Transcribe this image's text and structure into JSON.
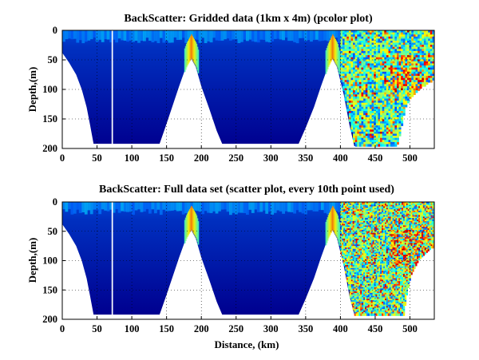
{
  "chart_data": [
    {
      "type": "heatmap",
      "title": "BackScatter: Gridded data (1km x 4m) (pcolor plot)",
      "xlabel": "",
      "ylabel": "Depth,(m)",
      "xlim": [
        0,
        535
      ],
      "ylim": [
        0,
        200
      ],
      "y_reversed": true,
      "grid": true,
      "xticks": [
        0,
        50,
        100,
        150,
        200,
        250,
        300,
        350,
        400,
        450,
        500
      ],
      "yticks": [
        0,
        50,
        100,
        150,
        200
      ],
      "colormap": "jet",
      "data_gaps_km": [
        [
          71,
          73
        ]
      ],
      "bottom_profile": [
        {
          "x": 0,
          "depth": 38
        },
        {
          "x": 10,
          "depth": 55
        },
        {
          "x": 20,
          "depth": 75
        },
        {
          "x": 28,
          "depth": 100
        },
        {
          "x": 35,
          "depth": 130
        },
        {
          "x": 40,
          "depth": 160
        },
        {
          "x": 45,
          "depth": 192
        },
        {
          "x": 140,
          "depth": 192
        },
        {
          "x": 148,
          "depth": 165
        },
        {
          "x": 158,
          "depth": 130
        },
        {
          "x": 168,
          "depth": 95
        },
        {
          "x": 178,
          "depth": 62
        },
        {
          "x": 185,
          "depth": 47
        },
        {
          "x": 192,
          "depth": 62
        },
        {
          "x": 200,
          "depth": 95
        },
        {
          "x": 212,
          "depth": 135
        },
        {
          "x": 222,
          "depth": 170
        },
        {
          "x": 230,
          "depth": 192
        },
        {
          "x": 340,
          "depth": 192
        },
        {
          "x": 350,
          "depth": 165
        },
        {
          "x": 362,
          "depth": 130
        },
        {
          "x": 372,
          "depth": 95
        },
        {
          "x": 382,
          "depth": 62
        },
        {
          "x": 388,
          "depth": 47
        },
        {
          "x": 395,
          "depth": 62
        },
        {
          "x": 405,
          "depth": 110
        },
        {
          "x": 413,
          "depth": 160
        },
        {
          "x": 420,
          "depth": 196
        },
        {
          "x": 480,
          "depth": 196
        },
        {
          "x": 486,
          "depth": 165
        },
        {
          "x": 492,
          "depth": 130
        },
        {
          "x": 500,
          "depth": 112
        },
        {
          "x": 515,
          "depth": 95
        },
        {
          "x": 535,
          "depth": 80
        }
      ]
    },
    {
      "type": "scatter",
      "title": "BackScatter: Full data set (scatter plot, every 10th point used)",
      "xlabel": "Distance, (km)",
      "ylabel": "Depth,(m)",
      "xlim": [
        0,
        535
      ],
      "ylim": [
        0,
        200
      ],
      "y_reversed": true,
      "grid": true,
      "xticks": [
        0,
        50,
        100,
        150,
        200,
        250,
        300,
        350,
        400,
        450,
        500
      ],
      "yticks": [
        0,
        50,
        100,
        150,
        200
      ],
      "colormap": "jet",
      "data_gaps_km": [
        [
          71,
          73
        ]
      ],
      "bottom_profile": [
        {
          "x": 0,
          "depth": 38
        },
        {
          "x": 10,
          "depth": 55
        },
        {
          "x": 20,
          "depth": 75
        },
        {
          "x": 28,
          "depth": 100
        },
        {
          "x": 35,
          "depth": 130
        },
        {
          "x": 40,
          "depth": 160
        },
        {
          "x": 45,
          "depth": 192
        },
        {
          "x": 140,
          "depth": 192
        },
        {
          "x": 148,
          "depth": 165
        },
        {
          "x": 158,
          "depth": 130
        },
        {
          "x": 168,
          "depth": 95
        },
        {
          "x": 178,
          "depth": 62
        },
        {
          "x": 185,
          "depth": 47
        },
        {
          "x": 192,
          "depth": 62
        },
        {
          "x": 200,
          "depth": 95
        },
        {
          "x": 212,
          "depth": 135
        },
        {
          "x": 222,
          "depth": 170
        },
        {
          "x": 230,
          "depth": 192
        },
        {
          "x": 340,
          "depth": 192
        },
        {
          "x": 350,
          "depth": 165
        },
        {
          "x": 362,
          "depth": 130
        },
        {
          "x": 372,
          "depth": 95
        },
        {
          "x": 382,
          "depth": 62
        },
        {
          "x": 388,
          "depth": 47
        },
        {
          "x": 395,
          "depth": 62
        },
        {
          "x": 405,
          "depth": 110
        },
        {
          "x": 413,
          "depth": 160
        },
        {
          "x": 420,
          "depth": 192
        },
        {
          "x": 490,
          "depth": 192
        },
        {
          "x": 494,
          "depth": 160
        },
        {
          "x": 500,
          "depth": 125
        },
        {
          "x": 510,
          "depth": 100
        },
        {
          "x": 522,
          "depth": 85
        },
        {
          "x": 535,
          "depth": 72
        }
      ]
    }
  ],
  "colors": {
    "background_fill": "#00008f",
    "water_low": "#0020b0",
    "water_mid": "#0050e0",
    "surface_high": "#00c8ff",
    "ridge_high": "#40ffc0"
  }
}
